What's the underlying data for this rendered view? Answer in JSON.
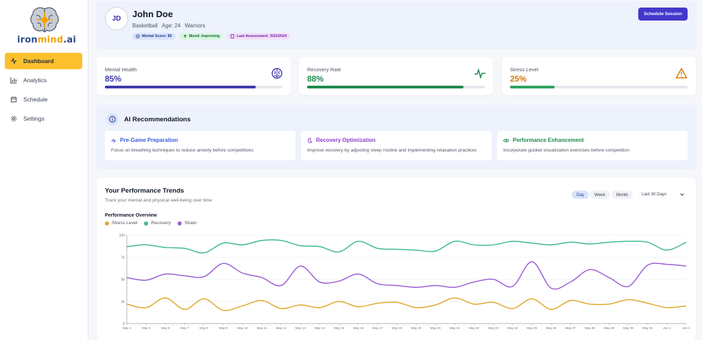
{
  "brand": {
    "part1": "iron",
    "part2": "mind",
    "part3": ".ai"
  },
  "nav": [
    {
      "label": "Dashboard",
      "icon": "activity-icon",
      "active": true
    },
    {
      "label": "Analytics",
      "icon": "bar-chart-icon"
    },
    {
      "label": "Schedule",
      "icon": "calendar-icon"
    },
    {
      "label": "Settings",
      "icon": "gear-icon"
    }
  ],
  "profile": {
    "initials": "JD",
    "name": "John Doe",
    "sport": "Basketball",
    "age": "Age: 24",
    "team": "Warriors",
    "badges": [
      "Mental Score: 85",
      "Mood: Improving",
      "Last Assessment: 3/22/2024"
    ],
    "schedule_label": "Schedule Session"
  },
  "metrics": [
    {
      "label": "Mental Health",
      "value": "85%",
      "pct": 85,
      "color": "#3f3aa8",
      "icon": "brain-icon"
    },
    {
      "label": "Recovery Rate",
      "value": "88%",
      "pct": 88,
      "color": "#1f8a4c",
      "icon": "pulse-icon"
    },
    {
      "label": "Stress Level",
      "value": "25%",
      "pct": 25,
      "color": "#2fa35f",
      "value_color": "#d97706",
      "icon": "warning-icon"
    }
  ],
  "ai": {
    "title": "AI Recommendations",
    "items": [
      {
        "title": "Pre-Game Preparation",
        "desc": "Focus on breathing techniques to reduce anxiety before competitions",
        "color": "#3b5bdb",
        "icon": "pulse-icon"
      },
      {
        "title": "Recovery Optimization",
        "desc": "Improve recovery by adjusting sleep routine and implementing relaxation practices",
        "color": "#8b3fd1",
        "icon": "moon-icon"
      },
      {
        "title": "Performance Enhancement",
        "desc": "Incorporate guided visualization exercises before competition",
        "color": "#1f8a4c",
        "icon": "eye-icon"
      }
    ]
  },
  "trends": {
    "title": "Your Performance Trends",
    "subtitle": "Track your mental and physical well-being over time",
    "segments": [
      "Day",
      "Week",
      "Month"
    ],
    "active_segment": "Day",
    "range": "Last 30 Days"
  },
  "chart_data": {
    "type": "line",
    "title": "Performance Overview",
    "x": [
      "May 4",
      "May 5",
      "May 6",
      "May 7",
      "May 8",
      "May 9",
      "May 10",
      "May 11",
      "May 12",
      "May 13",
      "May 14",
      "May 15",
      "May 16",
      "May 17",
      "May 18",
      "May 19",
      "May 20",
      "May 21",
      "May 22",
      "May 23",
      "May 24",
      "May 25",
      "May 26",
      "May 27",
      "May 28",
      "May 29",
      "May 30",
      "May 31",
      "Jun 1",
      "Jun 2"
    ],
    "ylim": [
      0,
      100
    ],
    "yticks": [
      0,
      25,
      50,
      75,
      100
    ],
    "grid": true,
    "legend": "top-left",
    "series": [
      {
        "name": "Stress Level",
        "color": "#e0a82e",
        "values": [
          22,
          18,
          29,
          16,
          28,
          15,
          20,
          26,
          17,
          21,
          18,
          25,
          19,
          23,
          24,
          18,
          21,
          29,
          22,
          24,
          17,
          28,
          16,
          26,
          22,
          22,
          27,
          23,
          18,
          20
        ]
      },
      {
        "name": "Recovery",
        "color": "#3dbb8e",
        "values": [
          87,
          89,
          86,
          85,
          80,
          91,
          89,
          94,
          94,
          88,
          87,
          81,
          93,
          85,
          84,
          83,
          82,
          93,
          89,
          89,
          93,
          91,
          89,
          92,
          90,
          92,
          93,
          92,
          83,
          92
        ]
      },
      {
        "name": "Strain",
        "color": "#9b5fd3",
        "values": [
          52,
          49,
          56,
          54,
          53,
          68,
          57,
          52,
          43,
          65,
          47,
          48,
          56,
          45,
          43,
          41,
          43,
          41,
          47,
          50,
          42,
          70,
          40,
          47,
          61,
          52,
          42,
          66,
          67,
          65
        ]
      }
    ]
  }
}
